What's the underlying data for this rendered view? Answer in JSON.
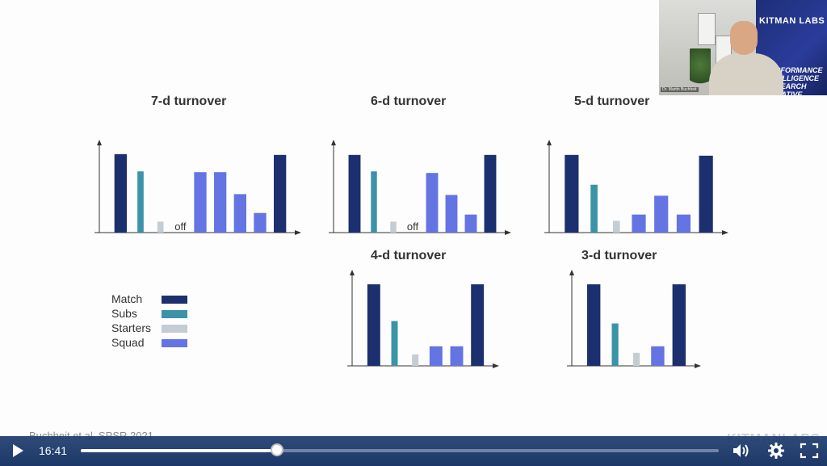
{
  "colors": {
    "match": "#1c2f6e",
    "subs": "#3a93a6",
    "starters": "#c3cdd3",
    "squad": "#6474e2",
    "axis": "#333333"
  },
  "legend": [
    {
      "label": "Match",
      "key": "match"
    },
    {
      "label": "Subs",
      "key": "subs"
    },
    {
      "label": "Starters",
      "key": "starters"
    },
    {
      "label": "Squad",
      "key": "squad"
    }
  ],
  "citation": "Buchheit et al. SPSR 2021",
  "watermark": "KITMANLABS",
  "webcam": {
    "brand": "KITMAN LABS",
    "banner_text": "PERFORMANCE INTELLIGENCE RESEARCH INITIATIVE",
    "caption": "Dr. Martin Buchheit",
    "icon": "webcam-video"
  },
  "player": {
    "time": "16:41",
    "progress": 0.307,
    "play_icon": "play-icon",
    "volume_icon": "volume-icon",
    "settings_icon": "gear-icon",
    "fullscreen_icon": "fullscreen-icon"
  },
  "chart_data": [
    {
      "type": "bar",
      "title": "7-d turnover",
      "categories": [
        "Match",
        "Subs",
        "Starters",
        "off",
        "Squad",
        "Squad",
        "Squad",
        "Squad",
        "Match"
      ],
      "values": [
        100,
        78,
        14,
        0,
        77,
        77,
        49,
        25,
        99
      ],
      "colors": [
        "match",
        "subs",
        "starters",
        null,
        "squad",
        "squad",
        "squad",
        "squad",
        "match"
      ],
      "annotations": [
        {
          "index": 3,
          "text": "off"
        }
      ],
      "ylim": [
        0,
        105
      ]
    },
    {
      "type": "bar",
      "title": "6-d turnover",
      "categories": [
        "Match",
        "Subs",
        "Starters",
        "off",
        "Squad",
        "Squad",
        "Squad",
        "Match"
      ],
      "values": [
        99,
        78,
        14,
        0,
        76,
        48,
        23,
        99
      ],
      "colors": [
        "match",
        "subs",
        "starters",
        null,
        "squad",
        "squad",
        "squad",
        "match"
      ],
      "annotations": [
        {
          "index": 3,
          "text": "off"
        }
      ],
      "ylim": [
        0,
        105
      ]
    },
    {
      "type": "bar",
      "title": "5-d turnover",
      "categories": [
        "Match",
        "Subs",
        "Starters",
        "Squad",
        "Squad",
        "Squad",
        "Match"
      ],
      "values": [
        99,
        61,
        15,
        23,
        47,
        23,
        98
      ],
      "colors": [
        "match",
        "subs",
        "starters",
        "squad",
        "squad",
        "squad",
        "match"
      ],
      "annotations": [],
      "ylim": [
        0,
        105
      ]
    },
    {
      "type": "bar",
      "title": "4-d turnover",
      "categories": [
        "Match",
        "Subs",
        "Starters",
        "Squad",
        "Squad",
        "Match"
      ],
      "values": [
        100,
        55,
        14,
        24,
        24,
        100
      ],
      "colors": [
        "match",
        "subs",
        "starters",
        "squad",
        "squad",
        "match"
      ],
      "annotations": [],
      "ylim": [
        0,
        105
      ]
    },
    {
      "type": "bar",
      "title": "3-d turnover",
      "categories": [
        "Match",
        "Subs",
        "Starters",
        "Squad",
        "Match"
      ],
      "values": [
        100,
        52,
        16,
        24,
        100
      ],
      "colors": [
        "match",
        "subs",
        "starters",
        "squad",
        "match"
      ],
      "annotations": [],
      "ylim": [
        0,
        105
      ]
    }
  ]
}
